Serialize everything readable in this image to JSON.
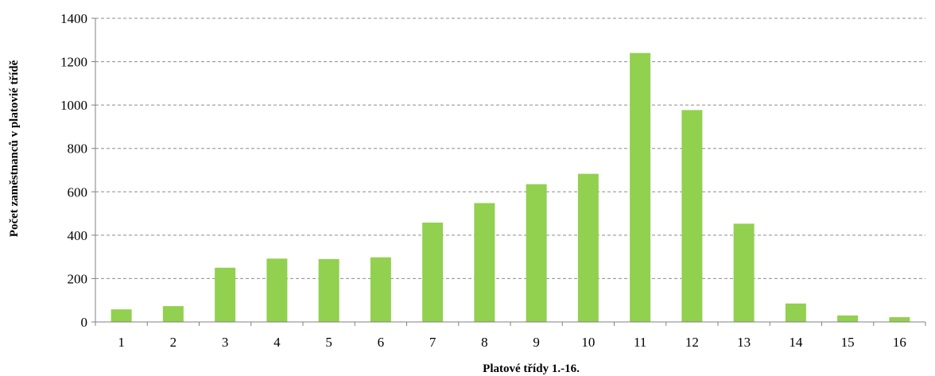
{
  "chart_data": {
    "type": "bar",
    "title": "",
    "xlabel": "Platové třídy 1.-16.",
    "ylabel": "Počet zaměstnanců v platovié třídě",
    "categories": [
      "1",
      "2",
      "3",
      "4",
      "5",
      "6",
      "7",
      "8",
      "9",
      "10",
      "11",
      "12",
      "13",
      "14",
      "15",
      "16"
    ],
    "values": [
      58,
      73,
      250,
      292,
      290,
      298,
      458,
      548,
      635,
      683,
      1240,
      977,
      453,
      85,
      30,
      22
    ],
    "ylim": [
      0,
      1400
    ],
    "yticks": [
      0,
      200,
      400,
      600,
      800,
      1000,
      1200,
      1400
    ],
    "grid": true,
    "legend": "none",
    "colors": {
      "bar": "#92d050",
      "grid": "#8c8c8c",
      "axis": "#808080"
    }
  }
}
